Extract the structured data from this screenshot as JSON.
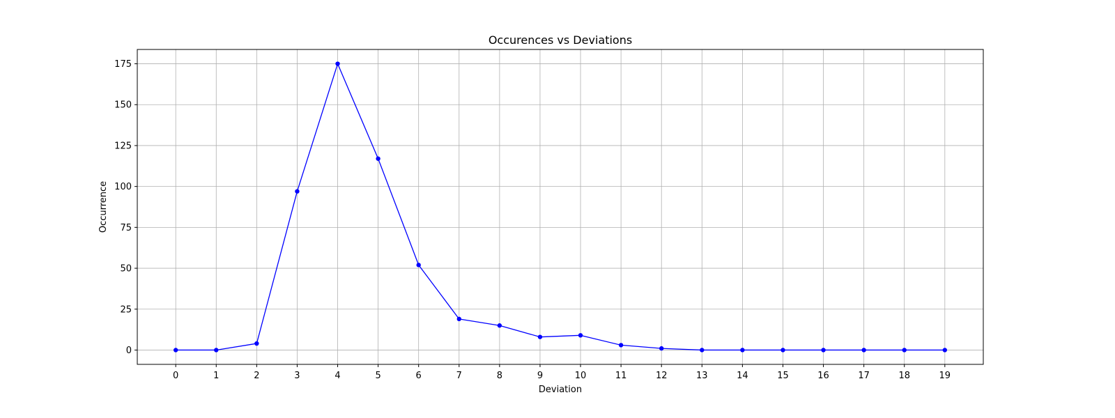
{
  "chart_data": {
    "type": "line",
    "title": "Occurences vs Deviations",
    "xlabel": "Deviation",
    "ylabel": "Occurrence",
    "x": [
      0,
      1,
      2,
      3,
      4,
      5,
      6,
      7,
      8,
      9,
      10,
      11,
      12,
      13,
      14,
      15,
      16,
      17,
      18,
      19
    ],
    "xticks": [
      "0",
      "1",
      "2",
      "3",
      "4",
      "5",
      "6",
      "7",
      "8",
      "9",
      "10",
      "11",
      "12",
      "13",
      "14",
      "15",
      "16",
      "17",
      "18",
      "19"
    ],
    "yticks": [
      0,
      25,
      50,
      75,
      100,
      125,
      150,
      175
    ],
    "xlim": [
      -0.95,
      19.95
    ],
    "ylim": [
      -8.75,
      183.75
    ],
    "grid": true,
    "series": [
      {
        "values": [
          0,
          0,
          4,
          97,
          175,
          117,
          52,
          19,
          15,
          8,
          9,
          3,
          1,
          0,
          0,
          0,
          0,
          0,
          0,
          0
        ],
        "color": "#0000ff",
        "marker": "circle"
      }
    ]
  }
}
